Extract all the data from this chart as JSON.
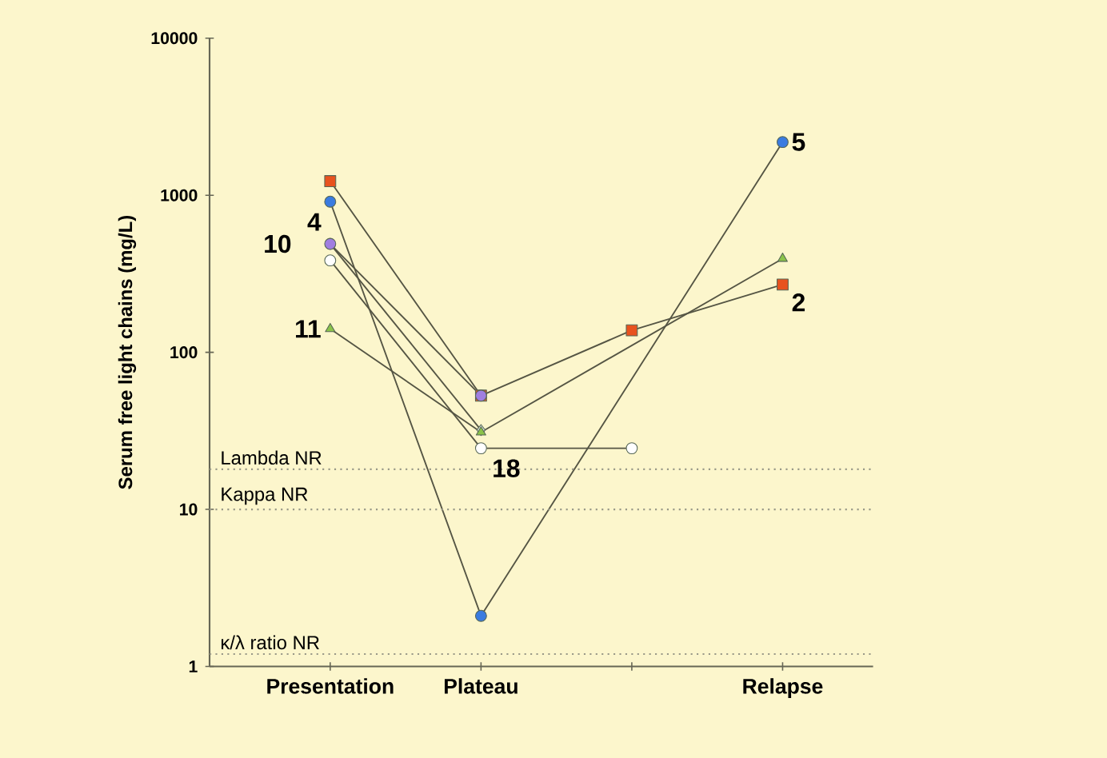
{
  "chart_data": {
    "type": "line",
    "ylabel": "Serum free light chains (mg/L)",
    "log": "y",
    "grid": false,
    "line_style": "solid",
    "categories": [
      "Presentation",
      "Plateau",
      null,
      "Relapse"
    ],
    "ylim": [
      1,
      10000
    ],
    "yticks": [
      1,
      10,
      100,
      1000,
      10000
    ],
    "series": [
      {
        "color": "#e8521e",
        "marker": "square",
        "values": [
          1230,
          53,
          138,
          270
        ]
      },
      {
        "color": "#3a7be0",
        "marker": "circle",
        "values": [
          910,
          2.1,
          null,
          2180
        ]
      },
      {
        "color": "#eef4ea",
        "marker": "diamond",
        "values": [
          490,
          32,
          null,
          null
        ]
      },
      {
        "color": "#a07ee0",
        "marker": "circle",
        "values": [
          490,
          53,
          null,
          null
        ]
      },
      {
        "color": "#ffffff",
        "marker": "circle",
        "values": [
          385,
          24.5,
          24.5,
          null
        ]
      },
      {
        "color": "#8bc34a",
        "marker": "triangle",
        "values": [
          141,
          31,
          null,
          395
        ]
      }
    ],
    "ref_lines": [
      {
        "axis": "y",
        "value": 18,
        "label": "Lambda NR",
        "color": "#999988",
        "line_style": "dotted"
      },
      {
        "axis": "y",
        "value": 10,
        "label": "Kappa NR",
        "color": "#999988",
        "line_style": "dotted"
      },
      {
        "axis": "y",
        "value": 1.2,
        "label": "κ/λ ratio NR",
        "color": "#999988",
        "line_style": "dotted"
      }
    ],
    "annotations": [
      {
        "text": "10",
        "x": "Presentation",
        "y": 490
      },
      {
        "text": "4",
        "x": "Presentation",
        "y": 490
      },
      {
        "text": "11",
        "x": "Presentation",
        "y": 141
      },
      {
        "text": "5",
        "x": "Relapse",
        "y": 2180
      },
      {
        "text": "2",
        "x": "Relapse",
        "y": 270
      },
      {
        "text": "18",
        "x": "Plateau",
        "y": 24.5
      }
    ]
  }
}
